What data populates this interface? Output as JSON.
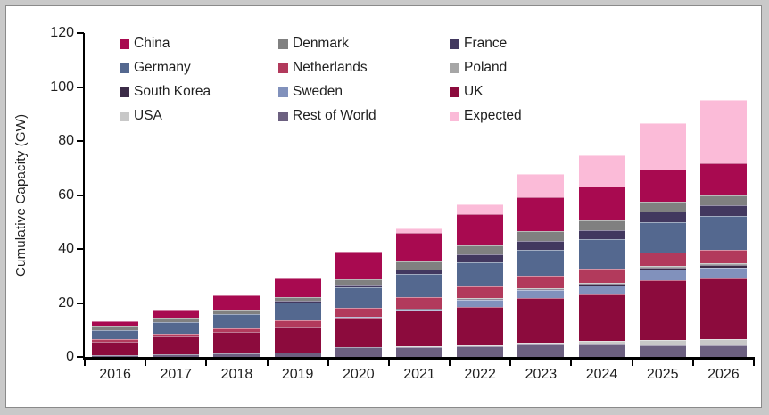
{
  "chart": {
    "ylabel": "Cumulative Capacity (GW)"
  },
  "chart_data": {
    "type": "bar",
    "stacked": true,
    "title": "",
    "xlabel": "",
    "ylabel": "Cumulative Capacity (GW)",
    "ylim": [
      0,
      120
    ],
    "yticks": [
      0,
      20,
      40,
      60,
      80,
      100,
      120
    ],
    "grid": false,
    "legend_position": "inside-top-left",
    "legend_columns": 3,
    "legend_order": [
      "China",
      "Denmark",
      "France",
      "Germany",
      "Netherlands",
      "Poland",
      "South Korea",
      "Sweden",
      "UK",
      "USA",
      "Rest of World",
      "Expected"
    ],
    "categories": [
      "2016",
      "2017",
      "2018",
      "2019",
      "2020",
      "2021",
      "2022",
      "2023",
      "2024",
      "2025",
      "2026"
    ],
    "stack_order": "bottom_to_top",
    "series": [
      {
        "name": "Rest of World",
        "color": "#6C6080",
        "values": [
          0.7,
          0.9,
          1.2,
          1.6,
          3.5,
          3.8,
          4.0,
          4.5,
          4.6,
          4.2,
          4.2
        ]
      },
      {
        "name": "USA",
        "color": "#C8C8C8",
        "values": [
          0.05,
          0.05,
          0.1,
          0.1,
          0.2,
          0.3,
          0.4,
          0.9,
          1.2,
          2.0,
          2.5
        ]
      },
      {
        "name": "UK",
        "color": "#8C0B3D",
        "values": [
          4.8,
          6.6,
          7.9,
          9.5,
          11.0,
          13.2,
          14.0,
          16.3,
          17.6,
          22.3,
          22.3
        ]
      },
      {
        "name": "Sweden",
        "color": "#8191BC",
        "values": [
          0.2,
          0.2,
          0.2,
          0.2,
          0.2,
          0.3,
          2.8,
          3.0,
          3.2,
          4.0,
          4.1
        ]
      },
      {
        "name": "South Korea",
        "color": "#3B2B47",
        "values": [
          0,
          0,
          0,
          0,
          0.1,
          0.1,
          0.2,
          0.5,
          0.6,
          0.7,
          0.9
        ]
      },
      {
        "name": "Poland",
        "color": "#A6A6A6",
        "values": [
          0,
          0,
          0,
          0,
          0,
          0.1,
          0.3,
          0.4,
          0.4,
          0.5,
          0.7
        ]
      },
      {
        "name": "Netherlands",
        "color": "#B23A5C",
        "values": [
          0.9,
          0.9,
          1.2,
          2.2,
          3.2,
          4.2,
          4.4,
          4.6,
          5.0,
          4.9,
          5.1
        ]
      },
      {
        "name": "Germany",
        "color": "#54688F",
        "values": [
          3.4,
          4.4,
          5.4,
          6.6,
          7.5,
          8.6,
          8.8,
          9.6,
          10.9,
          11.5,
          12.6
        ]
      },
      {
        "name": "France",
        "color": "#42385F",
        "values": [
          0,
          0,
          0,
          0.5,
          1.0,
          1.8,
          3.0,
          3.2,
          3.4,
          3.7,
          3.7
        ]
      },
      {
        "name": "Denmark",
        "color": "#808080",
        "values": [
          1.4,
          1.4,
          1.4,
          1.6,
          2.0,
          2.9,
          3.4,
          3.6,
          3.6,
          3.7,
          3.7
        ]
      },
      {
        "name": "China",
        "color": "#A80A50",
        "values": [
          1.8,
          3.0,
          5.5,
          6.8,
          10.5,
          10.8,
          11.6,
          12.6,
          12.8,
          11.8,
          11.8
        ]
      },
      {
        "name": "Expected",
        "color": "#FBBBD8",
        "values": [
          0,
          0,
          0,
          0,
          0,
          1.4,
          3.5,
          8.5,
          11.5,
          17.2,
          23.5
        ]
      }
    ],
    "totals": [
      13.3,
      17.5,
      22.9,
      29.1,
      39.2,
      47.5,
      56.4,
      67.7,
      74.8,
      86.5,
      95.1
    ]
  },
  "style": {
    "axis_color": "#000000",
    "text_color": "#1f1f1f",
    "frame_background": "#c9c9c9",
    "panel_background": "#ffffff",
    "panel_border": "#8a8a8a"
  }
}
